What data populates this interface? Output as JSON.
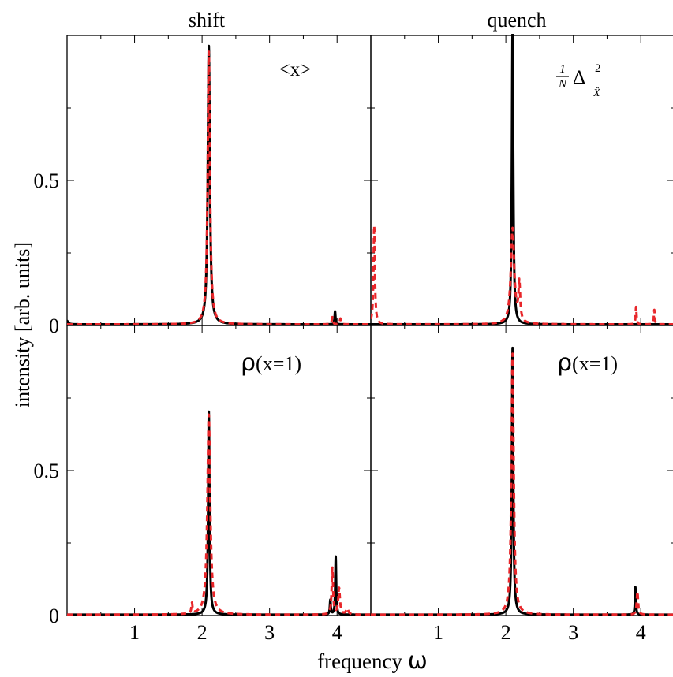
{
  "figure": {
    "column_titles": [
      "shift",
      "quench"
    ],
    "xlabel_text": "frequency ",
    "xlabel_symbol": "ω",
    "ylabel": "intensity [arb. units]"
  },
  "colors": {
    "exact": "#000000",
    "approx": "#e8262a"
  },
  "chart_data": [
    {
      "type": "line",
      "panel": "shift-top",
      "annotation": "<x>",
      "xlim": [
        0,
        4.5
      ],
      "ylim": [
        0,
        1.0
      ],
      "x_ticks": [
        "1",
        "2",
        "3",
        "4"
      ],
      "y_ticks": [
        "0",
        "0.5"
      ],
      "series": [
        {
          "style": "solid-black",
          "baseline": 0.004,
          "peaks": [
            {
              "x": 0.0,
              "a": 0.012,
              "g": 0.02
            },
            {
              "x": 2.1,
              "a": 0.96,
              "g": 0.018
            },
            {
              "x": 3.97,
              "a": 0.045,
              "g": 0.008
            }
          ]
        },
        {
          "style": "dashed-red",
          "baseline": 0.004,
          "peaks": [
            {
              "x": 2.1,
              "a": 0.94,
              "g": 0.02
            },
            {
              "x": 3.93,
              "a": 0.025,
              "g": 0.01
            },
            {
              "x": 4.05,
              "a": 0.02,
              "g": 0.01
            }
          ]
        }
      ]
    },
    {
      "type": "line",
      "panel": "quench-top",
      "annotation_math": {
        "num": "1",
        "den": "N",
        "delta": "Δ",
        "sup": "2",
        "sub": "X̂"
      },
      "xlim": [
        0,
        4.5
      ],
      "ylim": [
        0,
        1.0
      ],
      "x_ticks": [
        "1",
        "2",
        "3",
        "4"
      ],
      "y_ticks": [
        "0",
        "0.5"
      ],
      "series": [
        {
          "style": "solid-black",
          "baseline": 0.004,
          "peaks": [
            {
              "x": 2.1,
              "a": 1.02,
              "g": 0.012
            }
          ]
        },
        {
          "style": "dashed-red",
          "baseline": 0.004,
          "peaks": [
            {
              "x": 0.05,
              "a": 0.34,
              "g": 0.012
            },
            {
              "x": 2.1,
              "a": 0.33,
              "g": 0.03
            },
            {
              "x": 2.2,
              "a": 0.13,
              "g": 0.015
            },
            {
              "x": 3.93,
              "a": 0.06,
              "g": 0.008
            },
            {
              "x": 4.2,
              "a": 0.05,
              "g": 0.008
            }
          ]
        }
      ]
    },
    {
      "type": "line",
      "panel": "shift-bottom",
      "annotation_rho": "ρ",
      "annotation_rest": "(x=1)",
      "xlim": [
        0,
        4.5
      ],
      "ylim": [
        0,
        1.0
      ],
      "x_ticks": [
        "1",
        "2",
        "3",
        "4"
      ],
      "y_ticks": [
        "0",
        "0.5"
      ],
      "series": [
        {
          "style": "solid-black",
          "baseline": 0.003,
          "peaks": [
            {
              "x": 2.1,
              "a": 0.7,
              "g": 0.012
            },
            {
              "x": 3.98,
              "a": 0.2,
              "g": 0.008
            },
            {
              "x": 3.9,
              "a": 0.05,
              "g": 0.008
            }
          ]
        },
        {
          "style": "dashed-red",
          "baseline": 0.003,
          "peaks": [
            {
              "x": 1.85,
              "a": 0.035,
              "g": 0.01
            },
            {
              "x": 2.1,
              "a": 0.69,
              "g": 0.025
            },
            {
              "x": 3.93,
              "a": 0.16,
              "g": 0.012
            },
            {
              "x": 4.03,
              "a": 0.09,
              "g": 0.015
            },
            {
              "x": 4.15,
              "a": 0.02,
              "g": 0.02
            }
          ]
        }
      ]
    },
    {
      "type": "line",
      "panel": "quench-bottom",
      "annotation_rho": "ρ",
      "annotation_rest": "(x=1)",
      "xlim": [
        0,
        4.5
      ],
      "ylim": [
        0,
        1.0
      ],
      "x_ticks": [
        "1",
        "2",
        "3",
        "4"
      ],
      "y_ticks": [
        "0",
        "0.5"
      ],
      "series": [
        {
          "style": "solid-black",
          "baseline": 0.003,
          "peaks": [
            {
              "x": 2.1,
              "a": 0.92,
              "g": 0.012
            },
            {
              "x": 3.92,
              "a": 0.095,
              "g": 0.008
            }
          ]
        },
        {
          "style": "dashed-red",
          "baseline": 0.003,
          "peaks": [
            {
              "x": 2.1,
              "a": 0.9,
              "g": 0.02
            },
            {
              "x": 3.95,
              "a": 0.08,
              "g": 0.012
            }
          ]
        }
      ]
    }
  ]
}
